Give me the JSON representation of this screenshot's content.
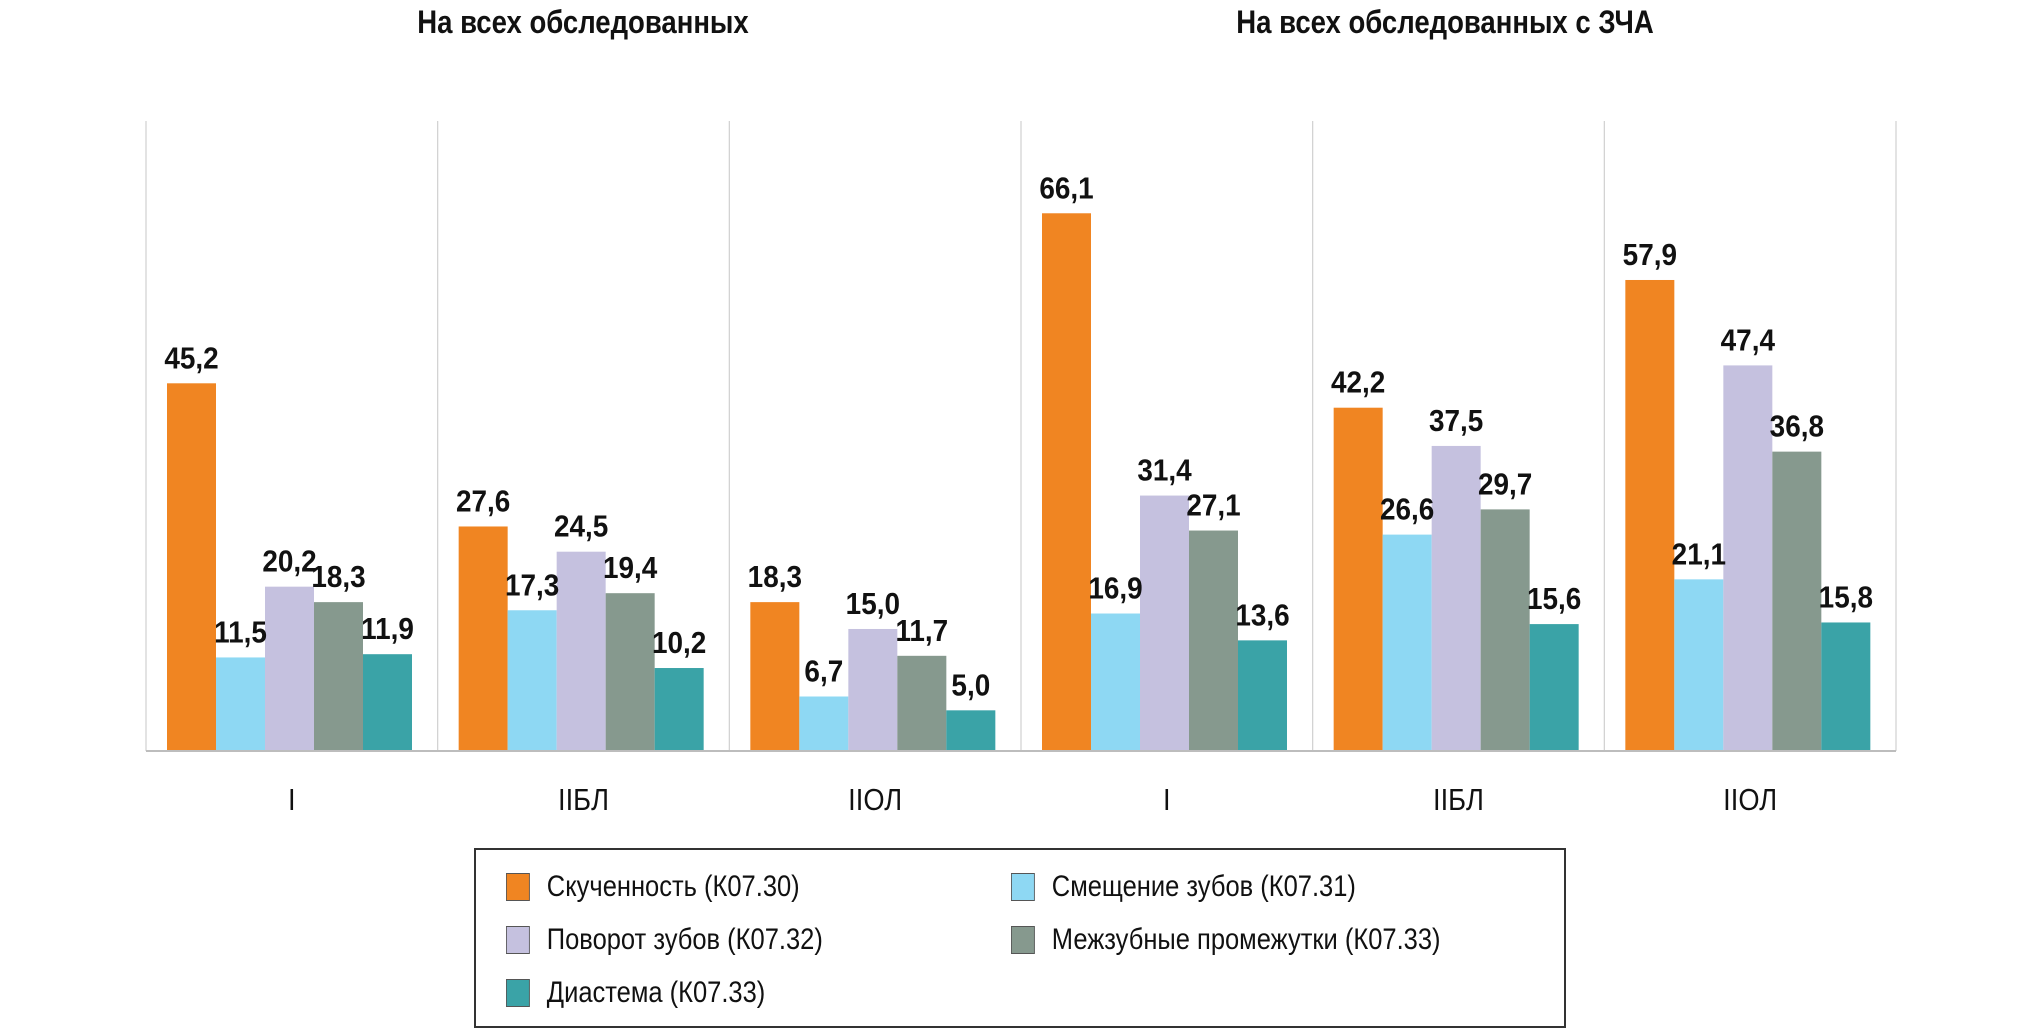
{
  "colors": {
    "crowding": "#F08522",
    "displacement": "#8ED8F3",
    "rotation": "#C5C1DF",
    "spacing": "#86998E",
    "diastema": "#3AA3A7",
    "gridline": "#D0D0D0",
    "axis": "#BDBDBD",
    "text": "#111111"
  },
  "chart_data": {
    "type": "bar",
    "panels": [
      {
        "title": "На всех обследованных"
      },
      {
        "title": "На всех обследованных с ЗЧА"
      }
    ],
    "categories": [
      "I",
      "IIБЛ",
      "IIОЛ",
      "I",
      "IIБЛ",
      "IIОЛ"
    ],
    "series": [
      {
        "key": "crowding",
        "name": "Скученность (К07.30)",
        "values": [
          45.2,
          27.6,
          18.3,
          66.1,
          42.2,
          57.9
        ],
        "labels": [
          "45,2",
          "27,6",
          "18,3",
          "66,1",
          "42,2",
          "57,9"
        ]
      },
      {
        "key": "displacement",
        "name": "Смещение зубов (К07.31)",
        "values": [
          11.5,
          17.3,
          6.7,
          16.9,
          26.6,
          21.1
        ],
        "labels": [
          "11,5",
          "17,3",
          "6,7",
          "16,9",
          "26,6",
          "21,1"
        ]
      },
      {
        "key": "rotation",
        "name": "Поворот зубов (К07.32)",
        "values": [
          20.2,
          24.5,
          15.0,
          31.4,
          37.5,
          47.4
        ],
        "labels": [
          "20,2",
          "24,5",
          "15,0",
          "31,4",
          "37,5",
          "47,4"
        ]
      },
      {
        "key": "spacing",
        "name": "Межзубные промежутки (К07.33)",
        "values": [
          18.3,
          19.4,
          11.7,
          27.1,
          29.7,
          36.8
        ],
        "labels": [
          "18,3",
          "19,4",
          "11,7",
          "27,1",
          "29,7",
          "36,8"
        ]
      },
      {
        "key": "diastema",
        "name": "Диастема (К07.33)",
        "values": [
          11.9,
          10.2,
          5.0,
          13.6,
          15.6,
          15.8
        ],
        "labels": [
          "11,9",
          "10,2",
          "5,0",
          "13,6",
          "15,6",
          "15,8"
        ]
      }
    ],
    "ylim": [
      0,
      70
    ],
    "grid": true,
    "legend_placement": "bottom"
  }
}
